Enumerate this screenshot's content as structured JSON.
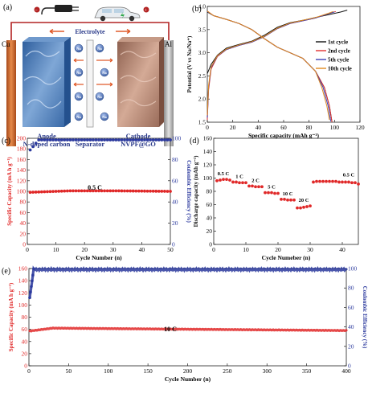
{
  "panel_a": {
    "letter": "(a)",
    "electrolyte_label": "Electrolyte",
    "cu_label": "Cu",
    "al_label": "Al",
    "anode_label": "Anode",
    "anode_material": "N-doped carbon",
    "separator_label": "Separator",
    "cathode_label": "Cathode",
    "cathode_material": "NVPF@GO",
    "ion_label": "Na",
    "colors": {
      "cu": "#d2692b",
      "al": "#b8b8b8",
      "anode": "#3f79bd",
      "cathode": "#b4836e",
      "ion": "#4f6fb0",
      "arrow": "#e05b2a",
      "wire": "#b22222"
    }
  },
  "chart_data": [
    {
      "id": "b",
      "letter": "(b)",
      "type": "line",
      "xlabel": "Specific capacity (mAh g⁻¹)",
      "ylabel": "Potential (V vs Na/Na⁺)",
      "xlim": [
        0,
        120
      ],
      "ylim": [
        1.5,
        4.0
      ],
      "xticks": [
        "0",
        "20",
        "40",
        "60",
        "80",
        "100",
        "120"
      ],
      "yticks": [
        "1.5",
        "2.0",
        "2.5",
        "3.0",
        "3.5",
        "4.0"
      ],
      "legend_position": "right",
      "series": [
        {
          "name": "1st cycle",
          "color": "#111111",
          "charge": [
            [
              0,
              2.55
            ],
            [
              3,
              2.75
            ],
            [
              8,
              2.95
            ],
            [
              15,
              3.1
            ],
            [
              25,
              3.18
            ],
            [
              35,
              3.25
            ],
            [
              45,
              3.38
            ],
            [
              55,
              3.55
            ],
            [
              65,
              3.65
            ],
            [
              75,
              3.7
            ],
            [
              85,
              3.76
            ],
            [
              95,
              3.82
            ],
            [
              105,
              3.88
            ],
            [
              110,
              3.92
            ]
          ],
          "discharge": [
            [
              0,
              3.88
            ],
            [
              5,
              3.8
            ],
            [
              15,
              3.72
            ],
            [
              25,
              3.63
            ],
            [
              35,
              3.5
            ],
            [
              45,
              3.3
            ],
            [
              55,
              3.12
            ],
            [
              65,
              3.0
            ],
            [
              75,
              2.88
            ],
            [
              85,
              2.6
            ],
            [
              92,
              2.25
            ],
            [
              96,
              1.85
            ],
            [
              98,
              1.5
            ]
          ]
        },
        {
          "name": "2nd cycle",
          "color": "#e03030",
          "charge": [
            [
              0,
              1.55
            ],
            [
              1,
              2.2
            ],
            [
              3,
              2.65
            ],
            [
              8,
              2.92
            ],
            [
              15,
              3.07
            ],
            [
              25,
              3.16
            ],
            [
              35,
              3.23
            ],
            [
              45,
              3.35
            ],
            [
              55,
              3.52
            ],
            [
              65,
              3.63
            ],
            [
              75,
              3.69
            ],
            [
              85,
              3.75
            ],
            [
              95,
              3.84
            ],
            [
              101,
              3.89
            ]
          ],
          "discharge": [
            [
              0,
              3.9
            ],
            [
              5,
              3.8
            ],
            [
              15,
              3.72
            ],
            [
              25,
              3.63
            ],
            [
              35,
              3.5
            ],
            [
              45,
              3.3
            ],
            [
              55,
              3.12
            ],
            [
              65,
              3.0
            ],
            [
              75,
              2.88
            ],
            [
              85,
              2.6
            ],
            [
              92,
              2.25
            ],
            [
              96,
              1.85
            ],
            [
              98,
              1.5
            ]
          ]
        },
        {
          "name": "5th cycle",
          "color": "#3a3fb5",
          "charge": [
            [
              0,
              1.6
            ],
            [
              1,
              2.25
            ],
            [
              3,
              2.68
            ],
            [
              8,
              2.93
            ],
            [
              15,
              3.07
            ],
            [
              25,
              3.16
            ],
            [
              35,
              3.23
            ],
            [
              45,
              3.35
            ],
            [
              55,
              3.52
            ],
            [
              65,
              3.63
            ],
            [
              75,
              3.69
            ],
            [
              85,
              3.75
            ],
            [
              95,
              3.84
            ],
            [
              100,
              3.88
            ]
          ],
          "discharge": [
            [
              0,
              3.89
            ],
            [
              5,
              3.8
            ],
            [
              15,
              3.72
            ],
            [
              25,
              3.63
            ],
            [
              35,
              3.5
            ],
            [
              45,
              3.3
            ],
            [
              55,
              3.12
            ],
            [
              65,
              3.0
            ],
            [
              75,
              2.88
            ],
            [
              85,
              2.6
            ],
            [
              91,
              2.25
            ],
            [
              95,
              1.85
            ],
            [
              97,
              1.52
            ]
          ]
        },
        {
          "name": "10th cycle",
          "color": "#e08a1e",
          "charge": [
            [
              0,
              1.65
            ],
            [
              1,
              2.3
            ],
            [
              3,
              2.7
            ],
            [
              8,
              2.94
            ],
            [
              15,
              3.08
            ],
            [
              25,
              3.17
            ],
            [
              35,
              3.24
            ],
            [
              45,
              3.36
            ],
            [
              55,
              3.53
            ],
            [
              65,
              3.64
            ],
            [
              75,
              3.7
            ],
            [
              85,
              3.76
            ],
            [
              95,
              3.85
            ],
            [
              99,
              3.89
            ]
          ],
          "discharge": [
            [
              0,
              3.9
            ],
            [
              5,
              3.8
            ],
            [
              15,
              3.72
            ],
            [
              25,
              3.63
            ],
            [
              35,
              3.5
            ],
            [
              45,
              3.3
            ],
            [
              55,
              3.12
            ],
            [
              65,
              3.0
            ],
            [
              75,
              2.88
            ],
            [
              85,
              2.6
            ],
            [
              90,
              2.25
            ],
            [
              94,
              1.85
            ],
            [
              96,
              1.55
            ]
          ]
        }
      ]
    },
    {
      "id": "c",
      "letter": "(c)",
      "type": "scatter",
      "annotation": "0.5 C",
      "xlabel": "Cycle Number (n)",
      "ylabel": "Specific Capacity (mA h g⁻¹)",
      "y2label": "Coulombic Efficiency (%)",
      "xlim": [
        0,
        50
      ],
      "ylim": [
        0,
        200
      ],
      "y2lim": [
        0,
        100
      ],
      "xticks": [
        "0",
        "10",
        "20",
        "30",
        "40",
        "50"
      ],
      "yticks": [
        "0",
        "20",
        "40",
        "60",
        "80",
        "100",
        "120",
        "140",
        "160",
        "180",
        "200"
      ],
      "y2ticks": [
        "0",
        "20",
        "40",
        "60",
        "80",
        "100"
      ],
      "capacity_color": "#e02828",
      "efficiency_color": "#2c3a9e",
      "capacity_start": 98,
      "capacity_mid": 101,
      "capacity_end": 100,
      "efficiency_start": 89,
      "efficiency_plateau": 98.5,
      "n_points": 50
    },
    {
      "id": "d",
      "letter": "(d)",
      "type": "scatter",
      "xlabel": "Cycle Numeber (n)",
      "ylabel": "Discharge capacity (mAh g⁻¹)",
      "xlim": [
        0,
        45
      ],
      "ylim": [
        0,
        160
      ],
      "xticks": [
        "0",
        "10",
        "20",
        "30",
        "40"
      ],
      "yticks": [
        "0",
        "20",
        "40",
        "60",
        "80",
        "100",
        "120",
        "140",
        "160"
      ],
      "color": "#e02828",
      "rates": [
        {
          "label": "0.5 C",
          "cycles": [
            1,
            5
          ],
          "values": [
            96,
            97,
            98,
            98,
            97
          ]
        },
        {
          "label": "1 C",
          "cycles": [
            6,
            10
          ],
          "values": [
            94,
            94,
            93,
            93,
            93
          ]
        },
        {
          "label": "2 C",
          "cycles": [
            11,
            15
          ],
          "values": [
            88,
            88,
            87,
            87,
            87
          ]
        },
        {
          "label": "5 C",
          "cycles": [
            16,
            20
          ],
          "values": [
            78,
            78,
            78,
            77,
            77
          ]
        },
        {
          "label": "10 C",
          "cycles": [
            21,
            25
          ],
          "values": [
            68,
            68,
            67,
            67,
            67
          ]
        },
        {
          "label": "20 C",
          "cycles": [
            26,
            30
          ],
          "values": [
            55,
            55,
            56,
            57,
            58
          ]
        },
        {
          "label": "0.5 C",
          "cycles": [
            31,
            45
          ],
          "values": [
            94,
            95,
            95,
            95,
            95,
            95,
            95,
            95,
            94,
            94,
            94,
            94,
            93,
            93,
            91
          ]
        }
      ]
    },
    {
      "id": "e",
      "letter": "(e)",
      "type": "scatter",
      "annotation": "10 C",
      "xlabel": "Cycle Number (n)",
      "ylabel": "Specific Capacity (mA h g⁻¹)",
      "y2label": "Coulombic Efficiency (%)",
      "xlim": [
        0,
        400
      ],
      "ylim": [
        0,
        160
      ],
      "y2lim": [
        0,
        100
      ],
      "xticks": [
        "0",
        "50",
        "100",
        "150",
        "200",
        "250",
        "300",
        "350",
        "400"
      ],
      "yticks": [
        "0",
        "20",
        "40",
        "60",
        "80",
        "100",
        "120",
        "140",
        "160"
      ],
      "y2ticks": [
        "0",
        "20",
        "40",
        "60",
        "80",
        "100"
      ],
      "capacity_color": "#e02828",
      "efficiency_color": "#2c3a9e",
      "capacity_start": 57,
      "capacity_peak": 62,
      "capacity_end": 58,
      "efficiency_start": 70,
      "efficiency_plateau": 99,
      "n_points": 400
    }
  ]
}
